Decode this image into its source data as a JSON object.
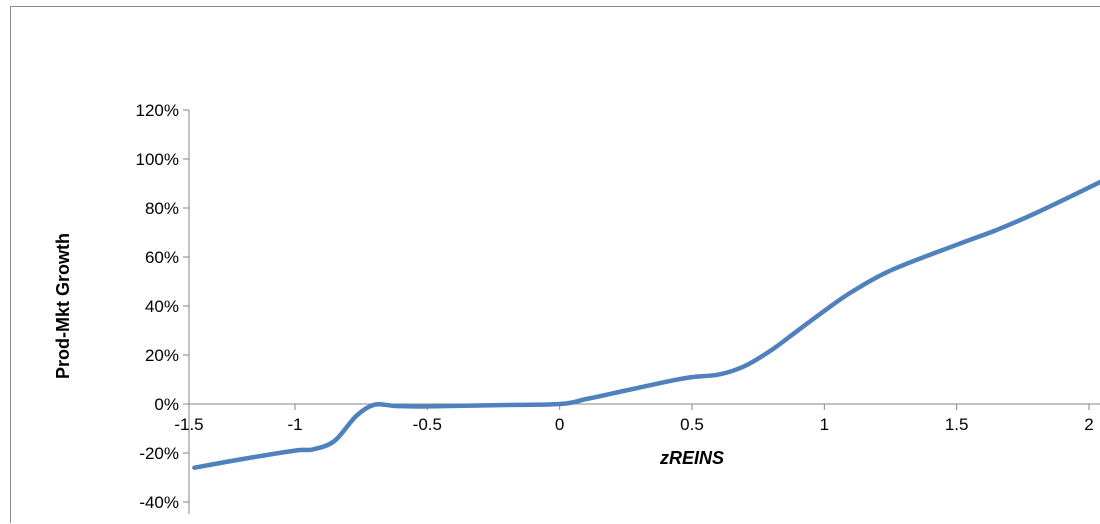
{
  "chart_data": {
    "type": "line",
    "title": "",
    "xlabel": "zREINS",
    "ylabel": "Prod-Mkt Growth",
    "xlim": [
      -1.5,
      2
    ],
    "ylim": [
      -0.4,
      1.2
    ],
    "x_ticks": [
      -1.5,
      -1,
      -0.5,
      0,
      0.5,
      1,
      1.5,
      2
    ],
    "x_tick_labels": [
      "-1.5",
      "-1",
      "-0.5",
      "0",
      "0.5",
      "1",
      "1.5",
      "2"
    ],
    "y_ticks": [
      -0.4,
      -0.2,
      0,
      0.2,
      0.4,
      0.6,
      0.8,
      1.0,
      1.2
    ],
    "y_tick_labels": [
      "-40%",
      "-20%",
      "0%",
      "20%",
      "40%",
      "60%",
      "80%",
      "100%",
      "120%"
    ],
    "grid": false,
    "legend": "none",
    "series_color": "#4f81bd",
    "series": [
      {
        "x": [
          -1.38,
          -1.2,
          -1.0,
          -0.93,
          -0.85,
          -0.77,
          -0.7,
          -0.62,
          -0.5,
          -0.25,
          0.0,
          0.1,
          0.25,
          0.4,
          0.5,
          0.6,
          0.7,
          0.8,
          0.9,
          1.0,
          1.1,
          1.25,
          1.5,
          1.65,
          1.8,
          2.05
        ],
        "y": [
          -0.26,
          -0.225,
          -0.19,
          -0.185,
          -0.15,
          -0.05,
          -0.003,
          -0.008,
          -0.01,
          -0.005,
          0.0,
          0.02,
          0.055,
          0.09,
          0.11,
          0.12,
          0.155,
          0.22,
          0.3,
          0.38,
          0.455,
          0.545,
          0.65,
          0.71,
          0.78,
          0.91
        ]
      }
    ]
  }
}
